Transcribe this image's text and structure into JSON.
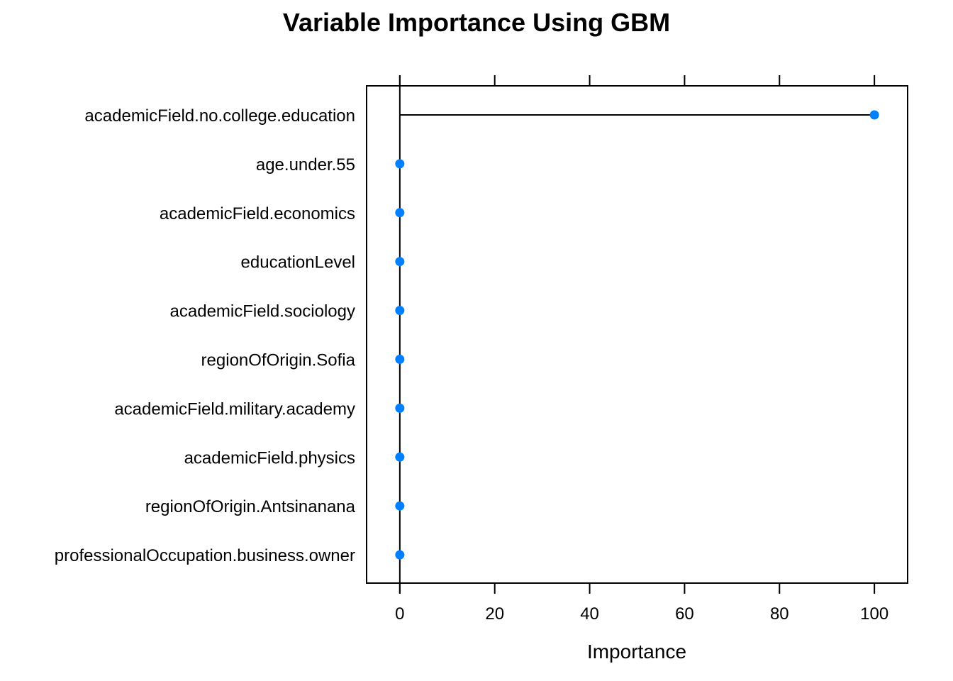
{
  "chart_data": {
    "type": "dotplot",
    "title": "Variable Importance Using GBM",
    "xlabel": "Importance",
    "ylabel": "",
    "xlim": [
      -7,
      107
    ],
    "xticks": [
      0,
      20,
      40,
      60,
      80,
      100
    ],
    "grid": false,
    "legend": "none",
    "point_color": "#0080ff",
    "line_color": "#000000",
    "categories": [
      "academicField.no.college.education",
      "age.under.55",
      "academicField.economics",
      "educationLevel",
      "academicField.sociology",
      "regionOfOrigin.Sofia",
      "academicField.military.academy",
      "academicField.physics",
      "regionOfOrigin.Antsinanana",
      "professionalOccupation.business.owner"
    ],
    "values": [
      100,
      0,
      0,
      0,
      0,
      0,
      0,
      0,
      0,
      0
    ]
  }
}
